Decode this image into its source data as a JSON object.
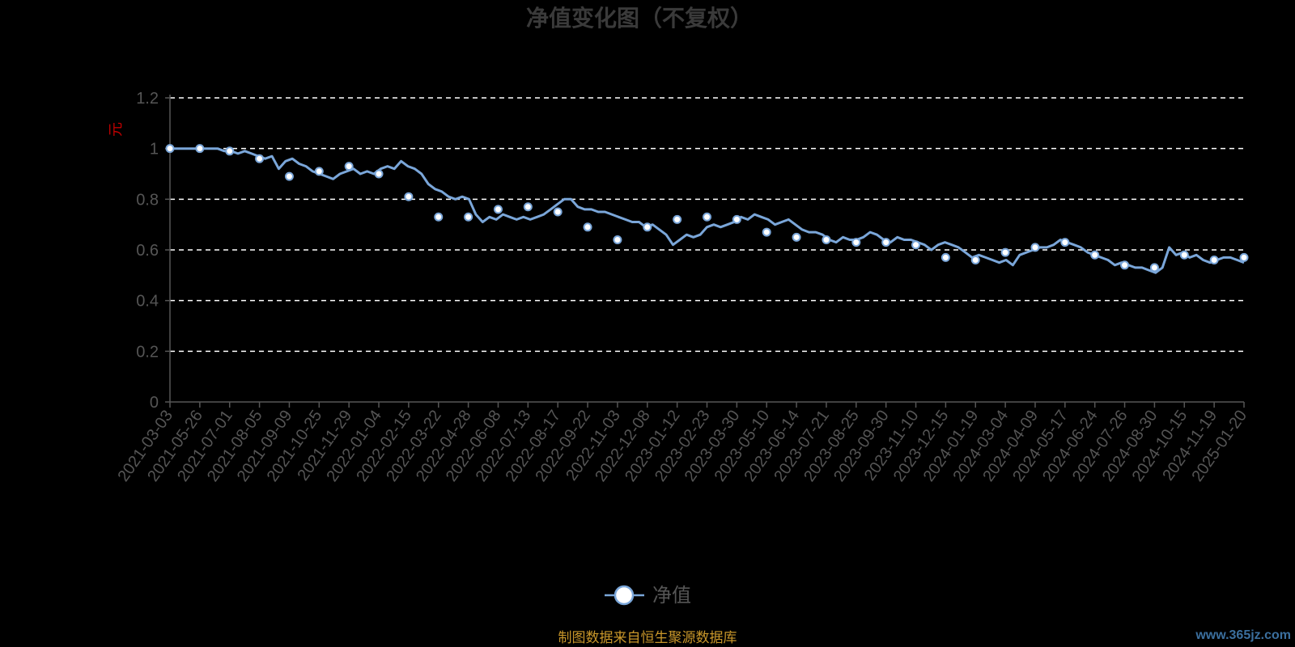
{
  "colors": {
    "background": "#000000",
    "series": "#7aa6d9",
    "marker_fill": "#ffffff",
    "grid": "#ffffff",
    "axis_text": "#555555",
    "source_text": "#c8962a",
    "unit_text": "#c00000"
  },
  "chart_data": {
    "type": "line",
    "title": "净值变化图（不复权）",
    "ylabel": "元",
    "xlabel": "",
    "ylim": [
      0,
      1.2
    ],
    "y_ticks": [
      "0",
      "0.2",
      "0.4",
      "0.6",
      "0.8",
      "1",
      "1.2"
    ],
    "grid": true,
    "legend_position": "bottom-center",
    "x_ticks": [
      "2021-03-03",
      "2021-05-26",
      "2021-07-01",
      "2021-08-05",
      "2021-09-09",
      "2021-10-25",
      "2021-11-29",
      "2022-01-04",
      "2022-02-15",
      "2022-03-22",
      "2022-04-28",
      "2022-06-08",
      "2022-07-13",
      "2022-08-17",
      "2022-09-22",
      "2022-11-03",
      "2022-12-08",
      "2023-01-12",
      "2023-02-23",
      "2023-03-30",
      "2023-05-10",
      "2023-06-14",
      "2023-07-21",
      "2023-08-25",
      "2023-09-30",
      "2023-11-10",
      "2023-12-15",
      "2024-01-19",
      "2024-03-04",
      "2024-04-09",
      "2024-05-17",
      "2024-06-24",
      "2024-07-26",
      "2024-08-30",
      "2024-10-15",
      "2024-11-19",
      "2025-01-20"
    ],
    "series": [
      {
        "name": "净值",
        "x": [
          "2021-03-03",
          "2021-05-26",
          "2021-07-01",
          "2021-08-05",
          "2021-09-09",
          "2021-10-25",
          "2021-11-29",
          "2022-01-04",
          "2022-02-15",
          "2022-03-22",
          "2022-04-28",
          "2022-06-08",
          "2022-07-13",
          "2022-08-17",
          "2022-09-22",
          "2022-11-03",
          "2022-12-08",
          "2023-01-12",
          "2023-02-23",
          "2023-03-30",
          "2023-05-10",
          "2023-06-14",
          "2023-07-21",
          "2023-08-25",
          "2023-09-30",
          "2023-11-10",
          "2023-12-15",
          "2024-01-19",
          "2024-03-04",
          "2024-04-09",
          "2024-05-17",
          "2024-06-24",
          "2024-07-26",
          "2024-08-30",
          "2024-10-15",
          "2024-11-19",
          "2025-01-20"
        ],
        "values": [
          1.0,
          1.0,
          0.99,
          0.96,
          0.89,
          0.91,
          0.93,
          0.9,
          0.81,
          0.73,
          0.73,
          0.76,
          0.77,
          0.75,
          0.69,
          0.64,
          0.69,
          0.72,
          0.73,
          0.72,
          0.67,
          0.65,
          0.64,
          0.63,
          0.63,
          0.62,
          0.57,
          0.56,
          0.59,
          0.61,
          0.63,
          0.58,
          0.54,
          0.53,
          0.58,
          0.56,
          0.57
        ],
        "detail": [
          1.0,
          1.0,
          1.0,
          1.0,
          1.0,
          1.0,
          1.0,
          1.0,
          0.99,
          0.99,
          0.98,
          0.99,
          0.98,
          0.97,
          0.96,
          0.97,
          0.92,
          0.95,
          0.96,
          0.94,
          0.93,
          0.91,
          0.9,
          0.89,
          0.88,
          0.9,
          0.91,
          0.92,
          0.9,
          0.91,
          0.9,
          0.92,
          0.93,
          0.92,
          0.95,
          0.93,
          0.92,
          0.9,
          0.86,
          0.84,
          0.83,
          0.81,
          0.8,
          0.81,
          0.8,
          0.74,
          0.71,
          0.73,
          0.72,
          0.74,
          0.73,
          0.72,
          0.73,
          0.72,
          0.73,
          0.74,
          0.76,
          0.78,
          0.8,
          0.8,
          0.77,
          0.76,
          0.76,
          0.75,
          0.75,
          0.74,
          0.73,
          0.72,
          0.71,
          0.71,
          0.69,
          0.7,
          0.68,
          0.66,
          0.62,
          0.64,
          0.66,
          0.65,
          0.66,
          0.69,
          0.7,
          0.69,
          0.7,
          0.71,
          0.73,
          0.72,
          0.74,
          0.73,
          0.72,
          0.7,
          0.71,
          0.72,
          0.7,
          0.68,
          0.67,
          0.67,
          0.66,
          0.64,
          0.63,
          0.65,
          0.64,
          0.64,
          0.65,
          0.67,
          0.66,
          0.64,
          0.63,
          0.65,
          0.64,
          0.64,
          0.63,
          0.62,
          0.6,
          0.62,
          0.63,
          0.62,
          0.61,
          0.59,
          0.57,
          0.58,
          0.57,
          0.56,
          0.55,
          0.56,
          0.54,
          0.58,
          0.59,
          0.6,
          0.61,
          0.61,
          0.62,
          0.64,
          0.63,
          0.62,
          0.61,
          0.59,
          0.58,
          0.57,
          0.56,
          0.54,
          0.55,
          0.54,
          0.53,
          0.53,
          0.52,
          0.51,
          0.53,
          0.61,
          0.58,
          0.59,
          0.57,
          0.58,
          0.56,
          0.55,
          0.56,
          0.57,
          0.57,
          0.56,
          0.55
        ]
      }
    ]
  },
  "footer": {
    "source": "制图数据来自恒生聚源数据库",
    "watermark": "www.365jz.com"
  }
}
